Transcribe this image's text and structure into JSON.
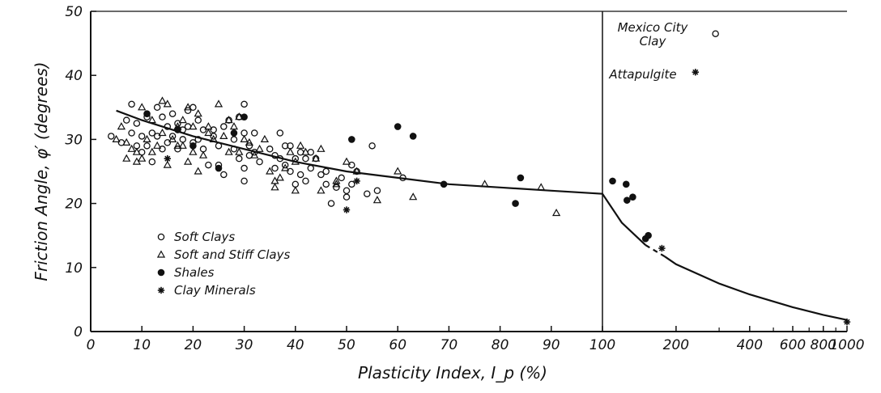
{
  "chart_data": {
    "type": "scatter",
    "title": "",
    "xlabel": "Plasticity Index, I_p (%)",
    "ylabel": "Friction Angle, φ′ (degrees)",
    "ylim": [
      0,
      50
    ],
    "x_scale": "linear 0–100, logarithmic 100–1000",
    "x_ticks": [
      0,
      10,
      20,
      30,
      40,
      50,
      60,
      70,
      80,
      90,
      100,
      200,
      400,
      600,
      800,
      1000
    ],
    "x_tick_labels": [
      "0",
      "10",
      "20",
      "30",
      "40",
      "50",
      "60",
      "70",
      "80",
      "90",
      "100",
      "200",
      "400",
      "600",
      "800",
      "1000"
    ],
    "y_ticks": [
      0,
      10,
      20,
      30,
      40,
      50
    ],
    "y_tick_labels": [
      "0",
      "10",
      "20",
      "30",
      "40",
      "50"
    ],
    "grid": false,
    "legend_position": "lower-left",
    "series": [
      {
        "name": "Soft Clays",
        "marker": "circle-open",
        "points": [
          [
            4,
            30.5
          ],
          [
            6,
            29.5
          ],
          [
            7,
            33
          ],
          [
            8,
            35.5
          ],
          [
            8,
            31
          ],
          [
            9,
            29
          ],
          [
            9,
            32.5
          ],
          [
            10,
            30.5
          ],
          [
            10,
            28
          ],
          [
            11,
            33.5
          ],
          [
            11,
            29
          ],
          [
            12,
            31
          ],
          [
            12,
            26.5
          ],
          [
            13,
            35
          ],
          [
            13,
            30.5
          ],
          [
            14,
            33.5
          ],
          [
            14,
            28.5
          ],
          [
            15,
            32
          ],
          [
            15,
            29.5
          ],
          [
            16,
            34
          ],
          [
            16,
            30.5
          ],
          [
            17,
            32.5
          ],
          [
            17,
            28.5
          ],
          [
            18,
            31.5
          ],
          [
            18,
            30
          ],
          [
            19,
            34.5
          ],
          [
            19,
            32
          ],
          [
            20,
            35
          ],
          [
            20,
            29.5
          ],
          [
            21,
            33
          ],
          [
            21,
            30
          ],
          [
            22,
            31.5
          ],
          [
            22,
            28.5
          ],
          [
            23,
            26
          ],
          [
            24,
            31.5
          ],
          [
            24,
            30.5
          ],
          [
            25,
            29
          ],
          [
            25,
            26
          ],
          [
            26,
            32
          ],
          [
            26,
            24.5
          ],
          [
            27,
            33
          ],
          [
            28,
            30
          ],
          [
            28,
            28.5
          ],
          [
            29,
            33.5
          ],
          [
            29,
            27
          ],
          [
            30,
            35.5
          ],
          [
            30,
            31
          ],
          [
            30,
            25.5
          ],
          [
            30,
            23.5
          ],
          [
            31,
            29
          ],
          [
            31,
            27.5
          ],
          [
            32,
            31
          ],
          [
            32,
            28
          ],
          [
            33,
            26.5
          ],
          [
            35,
            28.5
          ],
          [
            36,
            27.5
          ],
          [
            36,
            25.5
          ],
          [
            37,
            31
          ],
          [
            37,
            27
          ],
          [
            38,
            26
          ],
          [
            38,
            29
          ],
          [
            39,
            29
          ],
          [
            39,
            25
          ],
          [
            40,
            27
          ],
          [
            40,
            23
          ],
          [
            41,
            28
          ],
          [
            41,
            24.5
          ],
          [
            42,
            27
          ],
          [
            42,
            23.5
          ],
          [
            43,
            25.5
          ],
          [
            43,
            28
          ],
          [
            44,
            27
          ],
          [
            45,
            24.5
          ],
          [
            46,
            25
          ],
          [
            46,
            23
          ],
          [
            47,
            20
          ],
          [
            48,
            22.5
          ],
          [
            49,
            24
          ],
          [
            50,
            22
          ],
          [
            50,
            21
          ],
          [
            51,
            26
          ],
          [
            51,
            23
          ],
          [
            52,
            25
          ],
          [
            54,
            21.5
          ],
          [
            55,
            29
          ],
          [
            56,
            22
          ],
          [
            61,
            24
          ]
        ]
      },
      {
        "name": "Soft and Stiff Clays",
        "marker": "triangle-open",
        "points": [
          [
            5,
            30
          ],
          [
            6,
            32
          ],
          [
            7,
            27
          ],
          [
            7,
            29.5
          ],
          [
            8,
            28.5
          ],
          [
            9,
            26.5
          ],
          [
            9,
            28
          ],
          [
            10,
            27
          ],
          [
            10,
            35
          ],
          [
            11,
            30
          ],
          [
            12,
            28
          ],
          [
            12,
            33
          ],
          [
            13,
            29
          ],
          [
            14,
            36
          ],
          [
            14,
            31
          ],
          [
            15,
            26
          ],
          [
            15,
            35.5
          ],
          [
            16,
            30
          ],
          [
            17,
            29
          ],
          [
            17,
            32
          ],
          [
            18,
            33
          ],
          [
            18,
            29
          ],
          [
            19,
            35
          ],
          [
            19,
            26.5
          ],
          [
            20,
            28
          ],
          [
            20,
            32
          ],
          [
            21,
            34
          ],
          [
            21,
            25
          ],
          [
            22,
            27.5
          ],
          [
            23,
            32
          ],
          [
            23,
            31
          ],
          [
            24,
            30
          ],
          [
            25,
            35.5
          ],
          [
            26,
            30.5
          ],
          [
            27,
            33
          ],
          [
            27,
            28
          ],
          [
            28,
            32
          ],
          [
            29,
            33.5
          ],
          [
            29,
            28
          ],
          [
            30,
            30
          ],
          [
            31,
            29.5
          ],
          [
            32,
            27.5
          ],
          [
            33,
            28.5
          ],
          [
            34,
            30
          ],
          [
            35,
            25
          ],
          [
            36,
            23.5
          ],
          [
            36,
            22.5
          ],
          [
            37,
            24
          ],
          [
            38,
            25.5
          ],
          [
            39,
            28
          ],
          [
            40,
            26.5
          ],
          [
            40,
            22
          ],
          [
            41,
            29
          ],
          [
            42,
            28
          ],
          [
            44,
            27
          ],
          [
            45,
            22
          ],
          [
            45,
            28.5
          ],
          [
            48,
            23
          ],
          [
            48,
            23.5
          ],
          [
            50,
            26.5
          ],
          [
            52,
            25
          ],
          [
            56,
            20.5
          ],
          [
            60,
            25
          ],
          [
            63,
            21
          ],
          [
            77,
            23
          ],
          [
            88,
            22.5
          ],
          [
            91,
            18.5
          ]
        ]
      },
      {
        "name": "Shales",
        "marker": "circle-filled",
        "points": [
          [
            11,
            34
          ],
          [
            17,
            31.5
          ],
          [
            20,
            29
          ],
          [
            25,
            25.5
          ],
          [
            28,
            31
          ],
          [
            30,
            33.5
          ],
          [
            51,
            30
          ],
          [
            60,
            32
          ],
          [
            63,
            30.5
          ],
          [
            69,
            23
          ],
          [
            83,
            20
          ],
          [
            84,
            24
          ],
          [
            110,
            23.5
          ],
          [
            125,
            23
          ],
          [
            126,
            20.5
          ],
          [
            133,
            21
          ],
          [
            150,
            14.5
          ],
          [
            154,
            15
          ]
        ]
      },
      {
        "name": "Clay Minerals",
        "marker": "asterisk",
        "points": [
          [
            15,
            27
          ],
          [
            50,
            19
          ],
          [
            52,
            23.5
          ],
          [
            175,
            13
          ],
          [
            240,
            40.5
          ],
          [
            1000,
            1.5
          ]
        ]
      }
    ],
    "trend_line": {
      "points": [
        [
          5,
          34.5
        ],
        [
          10,
          33
        ],
        [
          20,
          30.5
        ],
        [
          30,
          28.5
        ],
        [
          40,
          26.5
        ],
        [
          50,
          25
        ],
        [
          60,
          24
        ],
        [
          70,
          23
        ],
        [
          80,
          22.5
        ],
        [
          90,
          22
        ],
        [
          100,
          21.5
        ],
        [
          120,
          17
        ],
        [
          150,
          13.5
        ],
        [
          200,
          10.5
        ],
        [
          300,
          7.5
        ],
        [
          400,
          5.8
        ],
        [
          600,
          3.8
        ],
        [
          800,
          2.6
        ],
        [
          1000,
          1.8
        ]
      ],
      "dashed_segment": [
        150,
        180
      ]
    },
    "separator_at_x": 100,
    "annotations": [
      {
        "text": "Mexico City Clay",
        "lines": [
          "Mexico City",
          "Clay"
        ],
        "point": [
          290,
          46.5
        ],
        "marker": "circle-open"
      },
      {
        "text": "Attapulgite",
        "lines": [
          "Attapulgite"
        ],
        "point": [
          240,
          40.5
        ],
        "marker": "asterisk"
      }
    ]
  }
}
